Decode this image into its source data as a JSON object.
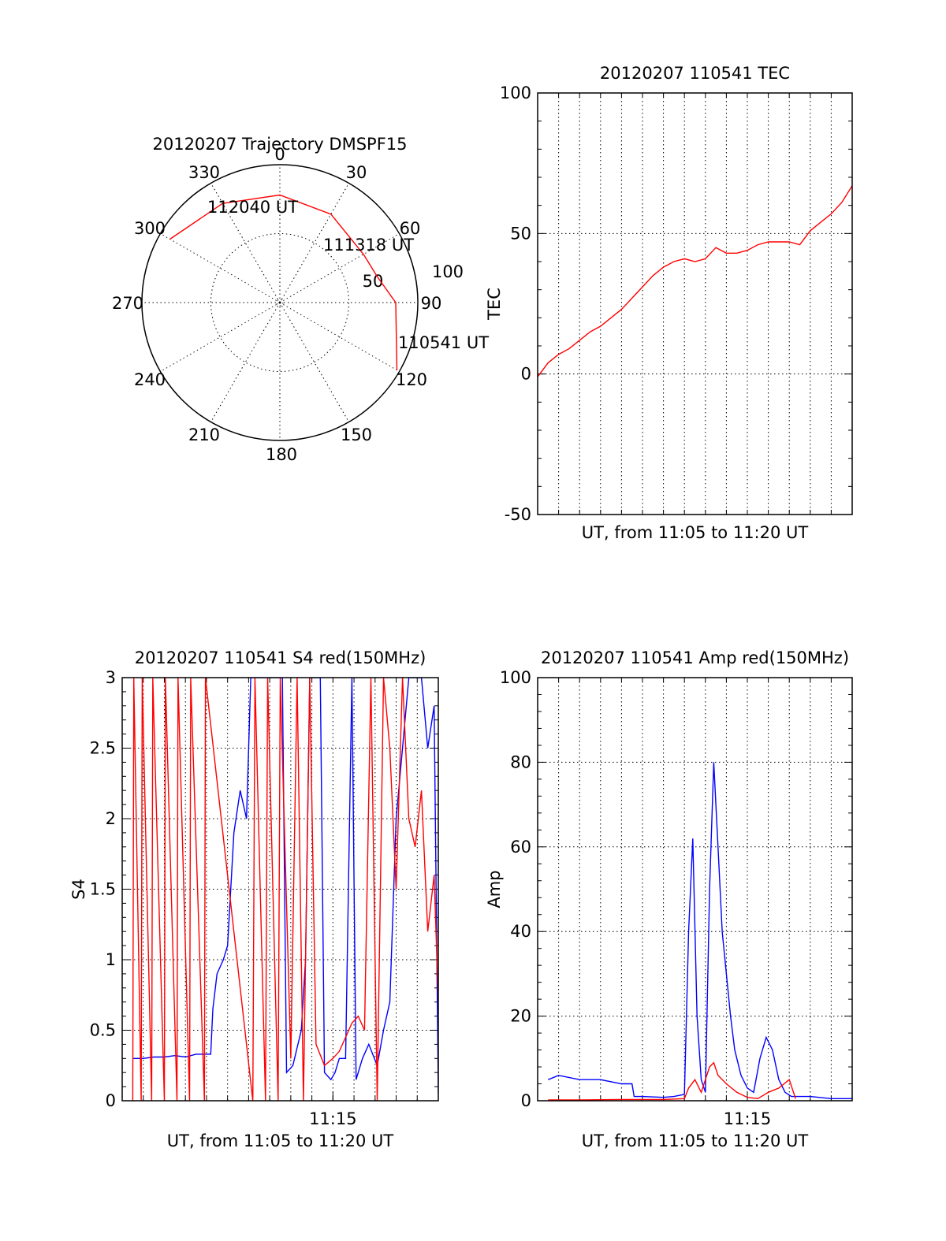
{
  "colors": {
    "red_trace": "#ff0000",
    "blue_trace": "#0000ff",
    "axes": "#000000"
  },
  "chart_data": [
    {
      "type": "polar",
      "title": "20120207 Trajectory DMSPF15",
      "angle_labels": [
        "0",
        "30",
        "60",
        "90",
        "120",
        "150",
        "180",
        "210",
        "240",
        "270",
        "300",
        "330"
      ],
      "radial_labels": [
        "50",
        "100"
      ],
      "annotations": [
        "112040 UT",
        "111318 UT",
        "110541 UT"
      ],
      "series": [
        {
          "color": "red",
          "points": [
            [
              300,
              92
            ],
            [
              330,
              83
            ],
            [
              0,
              78
            ],
            [
              30,
              74
            ],
            [
              60,
              70
            ],
            [
              75,
              73
            ],
            [
              90,
              84
            ],
            [
              120,
              98
            ]
          ]
        }
      ],
      "grid": true
    },
    {
      "type": "line",
      "title": "20120207 110541 TEC",
      "xlabel": "UT, from 11:05 to 11:20 UT",
      "ylabel": "TEC",
      "xlim": [
        0,
        15
      ],
      "ylim": [
        -50,
        100
      ],
      "yticks": [
        "-50",
        "0",
        "50",
        "100"
      ],
      "xtick_labels": [],
      "grid": true,
      "series": [
        {
          "color": "red",
          "x": [
            0,
            0.5,
            1,
            1.5,
            2,
            2.5,
            3,
            3.5,
            4,
            4.5,
            5,
            5.5,
            6,
            6.5,
            7,
            7.5,
            8,
            8.5,
            9,
            9.5,
            10,
            10.5,
            11,
            11.5,
            12,
            12.5,
            13,
            13.5,
            14,
            14.5,
            15
          ],
          "y": [
            -1,
            4,
            7,
            9,
            12,
            15,
            17,
            20,
            23,
            27,
            31,
            35,
            38,
            40,
            41,
            40,
            41,
            45,
            43,
            43,
            44,
            46,
            47,
            47,
            47,
            46,
            51,
            54,
            57,
            61,
            67
          ]
        }
      ]
    },
    {
      "type": "line",
      "title": "20120207 110541 S4 red(150MHz)",
      "xlabel": "UT, from 11:05 to 11:20 UT",
      "ylabel": "S4",
      "xlim": [
        0,
        15
      ],
      "ylim": [
        0,
        3
      ],
      "yticks": [
        "0",
        "0.5",
        "1",
        "1.5",
        "2",
        "2.5",
        "3"
      ],
      "xtick_labels": [
        {
          "x": 10,
          "label": "11:15"
        }
      ],
      "grid": true,
      "series": [
        {
          "color": "blue",
          "x": [
            0.5,
            1,
            1.5,
            2,
            2.5,
            3,
            3.5,
            4,
            4.2,
            4.3,
            4.5,
            4.8,
            5,
            5.3,
            5.6,
            5.9,
            6.1,
            6.5,
            6.8,
            7,
            7.3,
            7.6,
            7.8,
            8.1,
            8.5,
            8.7,
            8.9,
            9.1,
            9.4,
            9.6,
            9.9,
            10.1,
            10.3,
            10.6,
            10.9,
            11.1,
            11.4,
            11.7,
            12.1,
            12.4,
            12.7,
            13,
            13.3,
            13.6,
            13.9,
            14.2,
            14.5,
            14.8,
            15
          ],
          "y": [
            0.3,
            0.3,
            0.31,
            0.31,
            0.32,
            0.31,
            0.33,
            0.33,
            0.33,
            0.65,
            0.9,
            1.0,
            1.1,
            1.9,
            2.2,
            2.0,
            3.0,
            3.0,
            3.0,
            3.0,
            3.0,
            3.0,
            0.2,
            0.25,
            0.5,
            1.0,
            3.0,
            3.0,
            3.0,
            0.2,
            0.15,
            0.2,
            0.3,
            0.3,
            3.0,
            0.15,
            0.3,
            0.4,
            0.25,
            0.5,
            0.7,
            2.0,
            2.5,
            3.0,
            3.0,
            3.0,
            2.5,
            2.8,
            0.05
          ]
        },
        {
          "color": "red",
          "x": [
            0.5,
            0.55,
            0.9,
            0.95,
            1.4,
            1.45,
            2.0,
            2.05,
            2.6,
            2.65,
            3.2,
            3.25,
            3.9,
            3.95,
            6.2,
            6.3,
            6.8,
            6.9,
            7.4,
            7.5,
            8.0,
            8.3,
            8.6,
            8.9,
            9.2,
            9.6,
            10.0,
            10.3,
            10.6,
            10.9,
            11.2,
            11.5,
            11.8,
            12.1,
            12.4,
            12.7,
            13.0,
            13.3,
            13.6,
            13.9,
            14.2,
            14.5,
            14.8,
            15
          ],
          "y": [
            0,
            3.0,
            0,
            3.0,
            0,
            3.0,
            0,
            3.0,
            0,
            3.0,
            0,
            3.0,
            0,
            3.0,
            0,
            3.0,
            0,
            3.0,
            0,
            3.0,
            0.3,
            3.0,
            0,
            3.0,
            0.4,
            0.25,
            0.3,
            0.35,
            0.45,
            0.55,
            0.6,
            0.5,
            3.0,
            0,
            3.0,
            2.5,
            1.5,
            3.0,
            2.0,
            1.8,
            2.2,
            1.2,
            1.6,
            0.7
          ]
        }
      ]
    },
    {
      "type": "line",
      "title": "20120207 110541 Amp red(150MHz)",
      "xlabel": "UT, from 11:05 to 11:20 UT",
      "ylabel": "Amp",
      "xlim": [
        0,
        15
      ],
      "ylim": [
        0,
        100
      ],
      "yticks": [
        "0",
        "20",
        "40",
        "60",
        "80",
        "100"
      ],
      "xtick_labels": [
        {
          "x": 10,
          "label": "11:15"
        }
      ],
      "grid": true,
      "series": [
        {
          "color": "blue",
          "x": [
            0.5,
            1,
            2,
            3,
            4,
            4.5,
            4.6,
            5,
            6,
            6.5,
            7,
            7.2,
            7.4,
            7.6,
            7.8,
            8.0,
            8.2,
            8.4,
            8.6,
            8.8,
            9.0,
            9.2,
            9.4,
            9.7,
            10.0,
            10.3,
            10.6,
            10.9,
            11.2,
            11.5,
            11.8,
            12.1,
            12.4,
            13,
            14,
            15
          ],
          "y": [
            5,
            6,
            5,
            5,
            4,
            4,
            1,
            1,
            0.8,
            1,
            1.5,
            40,
            62,
            20,
            5,
            2,
            50,
            80,
            60,
            40,
            30,
            20,
            12,
            6,
            3,
            2,
            10,
            15,
            12,
            5,
            2,
            1,
            1,
            1,
            0.5,
            0.5
          ]
        },
        {
          "color": "red",
          "x": [
            0.5,
            2,
            4,
            6,
            7,
            7.2,
            7.5,
            7.8,
            8.2,
            8.4,
            8.6,
            9.0,
            9.5,
            10.0,
            10.5,
            11.0,
            11.5,
            12.0,
            12.3
          ],
          "y": [
            0.2,
            0.2,
            0.3,
            0.3,
            0.5,
            3,
            5,
            2,
            8,
            9,
            6,
            4,
            2,
            0.8,
            0.5,
            2,
            3,
            5,
            0.5
          ]
        }
      ]
    }
  ]
}
